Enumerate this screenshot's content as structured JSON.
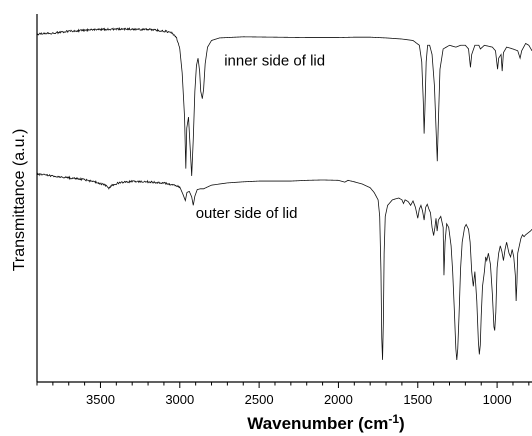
{
  "chart_data": {
    "type": "line",
    "xlabel": "Wavenumber (cm",
    "xlabel_sup": "-1",
    "xlabel_end": ")",
    "ylabel": "Transmittance (a.u.)",
    "xlim": [
      3900,
      780
    ],
    "x_reversed": true,
    "x_ticks": [
      3500,
      3000,
      2500,
      2000,
      1500,
      1000
    ],
    "x_tick_labels": [
      "3500",
      "3000",
      "2500",
      "2000",
      "1500",
      "1000"
    ],
    "x_minor_step": 100,
    "y_ticks_shown": false,
    "ylim": [
      0,
      100
    ],
    "series": [
      {
        "name": "inner side of lid",
        "points": [
          [
            3900,
            94.5
          ],
          [
            3800,
            94.8
          ],
          [
            3700,
            95.3
          ],
          [
            3600,
            95.6
          ],
          [
            3500,
            95.8
          ],
          [
            3400,
            95.9
          ],
          [
            3300,
            95.9
          ],
          [
            3200,
            95.8
          ],
          [
            3100,
            95.4
          ],
          [
            3050,
            94.8
          ],
          [
            3020,
            93.5
          ],
          [
            3000,
            90.5
          ],
          [
            2985,
            84
          ],
          [
            2970,
            72
          ],
          [
            2962,
            58
          ],
          [
            2956,
            69
          ],
          [
            2945,
            72
          ],
          [
            2935,
            64
          ],
          [
            2925,
            56
          ],
          [
            2915,
            66
          ],
          [
            2905,
            79
          ],
          [
            2895,
            86
          ],
          [
            2885,
            88
          ],
          [
            2875,
            84.5
          ],
          [
            2868,
            79
          ],
          [
            2858,
            77
          ],
          [
            2850,
            79.5
          ],
          [
            2840,
            86.5
          ],
          [
            2825,
            91
          ],
          [
            2800,
            92.8
          ],
          [
            2750,
            93.5
          ],
          [
            2600,
            93.8
          ],
          [
            2400,
            93.7
          ],
          [
            2200,
            93.6
          ],
          [
            2000,
            93.6
          ],
          [
            1900,
            93.7
          ],
          [
            1800,
            93.7
          ],
          [
            1700,
            93.5
          ],
          [
            1600,
            93.2
          ],
          [
            1530,
            92.8
          ],
          [
            1490,
            91.5
          ],
          [
            1475,
            87
          ],
          [
            1465,
            76
          ],
          [
            1460,
            67.5
          ],
          [
            1455,
            74
          ],
          [
            1447,
            87
          ],
          [
            1438,
            91.5
          ],
          [
            1425,
            91.5
          ],
          [
            1410,
            89
          ],
          [
            1395,
            80.5
          ],
          [
            1385,
            69
          ],
          [
            1377,
            60
          ],
          [
            1370,
            71
          ],
          [
            1360,
            85
          ],
          [
            1340,
            90.5
          ],
          [
            1300,
            91.5
          ],
          [
            1260,
            91
          ],
          [
            1230,
            91.5
          ],
          [
            1200,
            91.5
          ],
          [
            1180,
            90.5
          ],
          [
            1168,
            85.5
          ],
          [
            1160,
            89
          ],
          [
            1140,
            91.5
          ],
          [
            1115,
            91.5
          ],
          [
            1105,
            90.5
          ],
          [
            1080,
            91.5
          ],
          [
            1030,
            91
          ],
          [
            1010,
            90
          ],
          [
            997,
            85
          ],
          [
            990,
            88
          ],
          [
            975,
            89
          ],
          [
            968,
            84.5
          ],
          [
            960,
            89.5
          ],
          [
            940,
            91
          ],
          [
            900,
            90.5
          ],
          [
            870,
            90
          ],
          [
            855,
            88
          ],
          [
            845,
            90
          ],
          [
            820,
            92
          ],
          [
            800,
            91.5
          ],
          [
            780,
            90
          ]
        ]
      },
      {
        "name": "outer side of lid",
        "points": [
          [
            3900,
            56.5
          ],
          [
            3800,
            56
          ],
          [
            3700,
            55.5
          ],
          [
            3600,
            55
          ],
          [
            3520,
            54.2
          ],
          [
            3470,
            53.5
          ],
          [
            3450,
            52.6
          ],
          [
            3430,
            53.4
          ],
          [
            3380,
            54.2
          ],
          [
            3300,
            54.5
          ],
          [
            3200,
            54.4
          ],
          [
            3100,
            54.1
          ],
          [
            3050,
            53.6
          ],
          [
            3000,
            53
          ],
          [
            2980,
            51
          ],
          [
            2965,
            49.3
          ],
          [
            2955,
            51.5
          ],
          [
            2940,
            51.8
          ],
          [
            2925,
            50.3
          ],
          [
            2915,
            48
          ],
          [
            2905,
            50.5
          ],
          [
            2890,
            52.3
          ],
          [
            2870,
            52.5
          ],
          [
            2850,
            52.5
          ],
          [
            2800,
            53.5
          ],
          [
            2700,
            54.1
          ],
          [
            2600,
            54.4
          ],
          [
            2500,
            54.6
          ],
          [
            2400,
            54.6
          ],
          [
            2300,
            54.6
          ],
          [
            2200,
            54.8
          ],
          [
            2100,
            54.9
          ],
          [
            2000,
            54.8
          ],
          [
            1960,
            54.3
          ],
          [
            1940,
            54.8
          ],
          [
            1900,
            54.4
          ],
          [
            1850,
            53.8
          ],
          [
            1800,
            52.8
          ],
          [
            1775,
            51.5
          ],
          [
            1750,
            49.5
          ],
          [
            1740,
            45
          ],
          [
            1732,
            30
          ],
          [
            1727,
            12
          ],
          [
            1722,
            6
          ],
          [
            1717,
            16
          ],
          [
            1712,
            35
          ],
          [
            1705,
            45
          ],
          [
            1690,
            48
          ],
          [
            1660,
            49.5
          ],
          [
            1620,
            50
          ],
          [
            1600,
            49.5
          ],
          [
            1590,
            48.5
          ],
          [
            1580,
            49.5
          ],
          [
            1560,
            49
          ],
          [
            1545,
            48
          ],
          [
            1530,
            49.2
          ],
          [
            1515,
            47.5
          ],
          [
            1500,
            44.5
          ],
          [
            1490,
            47
          ],
          [
            1480,
            48
          ],
          [
            1470,
            46.5
          ],
          [
            1460,
            44
          ],
          [
            1450,
            47.5
          ],
          [
            1440,
            48.3
          ],
          [
            1430,
            47
          ],
          [
            1420,
            46
          ],
          [
            1410,
            42
          ],
          [
            1400,
            39.8
          ],
          [
            1392,
            42
          ],
          [
            1385,
            44.5
          ],
          [
            1378,
            41
          ],
          [
            1370,
            44
          ],
          [
            1355,
            45
          ],
          [
            1340,
            42
          ],
          [
            1335,
            29
          ],
          [
            1328,
            38
          ],
          [
            1318,
            43
          ],
          [
            1305,
            42
          ],
          [
            1290,
            37
          ],
          [
            1280,
            30
          ],
          [
            1270,
            20
          ],
          [
            1260,
            9
          ],
          [
            1254,
            6
          ],
          [
            1248,
            9
          ],
          [
            1240,
            18
          ],
          [
            1230,
            31
          ],
          [
            1220,
            38
          ],
          [
            1205,
            42
          ],
          [
            1195,
            42.8
          ],
          [
            1180,
            41.5
          ],
          [
            1170,
            38
          ],
          [
            1160,
            30
          ],
          [
            1150,
            26
          ],
          [
            1140,
            30
          ],
          [
            1128,
            22
          ],
          [
            1118,
            11
          ],
          [
            1112,
            7.5
          ],
          [
            1106,
            10
          ],
          [
            1100,
            18
          ],
          [
            1092,
            26
          ],
          [
            1080,
            30
          ],
          [
            1072,
            34
          ],
          [
            1065,
            33
          ],
          [
            1055,
            35
          ],
          [
            1042,
            32
          ],
          [
            1030,
            24
          ],
          [
            1020,
            15
          ],
          [
            1015,
            14
          ],
          [
            1008,
            19
          ],
          [
            1000,
            31
          ],
          [
            990,
            35
          ],
          [
            980,
            37
          ],
          [
            970,
            35.5
          ],
          [
            960,
            33
          ],
          [
            950,
            36
          ],
          [
            940,
            38
          ],
          [
            925,
            35
          ],
          [
            915,
            34
          ],
          [
            905,
            36
          ],
          [
            895,
            34
          ],
          [
            885,
            29
          ],
          [
            880,
            22
          ],
          [
            875,
            27
          ],
          [
            870,
            35
          ],
          [
            860,
            37
          ],
          [
            850,
            39
          ],
          [
            840,
            40
          ],
          [
            830,
            39.5
          ],
          [
            820,
            40
          ],
          [
            805,
            40.5
          ],
          [
            790,
            41
          ],
          [
            780,
            41.5
          ]
        ]
      }
    ],
    "annotations": [
      {
        "text": "inner side of lid",
        "x": 2720,
        "y": 86,
        "anchor": "start"
      },
      {
        "text": "outer side of lid",
        "x": 2900,
        "y": 44.5,
        "anchor": "start"
      }
    ]
  }
}
